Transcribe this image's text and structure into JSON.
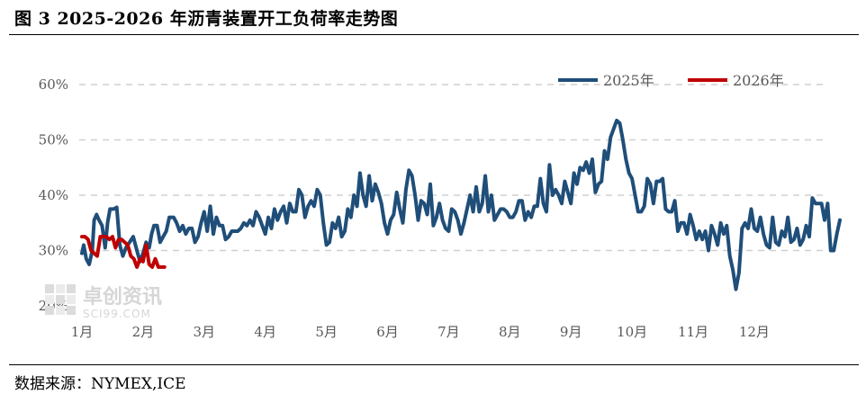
{
  "header": {
    "title": "图 3 2025-2026 年沥青装置开工负荷率走势图"
  },
  "footer": {
    "source": "数据来源：NYMEX,ICE"
  },
  "watermark": {
    "name": "卓创资讯",
    "sub": "SCI99.COM"
  },
  "colors": {
    "series_2025": "#1f4e79",
    "series_2026": "#c00000",
    "grid": "#d0d0d0",
    "tick": "#595959"
  },
  "chart_data": {
    "type": "line",
    "title": "图 3 2025-2026 年沥青装置开工负荷率走势图",
    "xlabel": "",
    "ylabel": "",
    "ylim": [
      20,
      60
    ],
    "y_ticks": [
      "20%",
      "30%",
      "40%",
      "50%",
      "60%"
    ],
    "y_tick_values": [
      20,
      30,
      40,
      50,
      60
    ],
    "x_ticks": [
      "1月",
      "2月",
      "3月",
      "4月",
      "5月",
      "6月",
      "7月",
      "8月",
      "9月",
      "10月",
      "11月",
      "12月"
    ],
    "grid": true,
    "legend_position": "top-right",
    "series": [
      {
        "name": "2025年",
        "color": "#1f4e79",
        "values": [
          [
            1.0,
            29.5
          ],
          [
            1.03,
            31.0
          ],
          [
            1.07,
            28.5
          ],
          [
            1.12,
            27.5
          ],
          [
            1.17,
            30.0
          ],
          [
            1.2,
            35.5
          ],
          [
            1.24,
            36.5
          ],
          [
            1.28,
            35.5
          ],
          [
            1.33,
            34.5
          ],
          [
            1.38,
            30.5
          ],
          [
            1.42,
            35.0
          ],
          [
            1.46,
            37.5
          ],
          [
            1.52,
            37.5
          ],
          [
            1.57,
            37.8
          ],
          [
            1.62,
            31.0
          ],
          [
            1.67,
            29.0
          ],
          [
            1.72,
            30.5
          ],
          [
            1.78,
            31.5
          ],
          [
            1.84,
            32.5
          ],
          [
            1.9,
            30.0
          ],
          [
            1.95,
            28.0
          ],
          [
            2.0,
            29.5
          ],
          [
            2.05,
            31.5
          ],
          [
            2.1,
            30.5
          ],
          [
            2.14,
            33.0
          ],
          [
            2.18,
            34.5
          ],
          [
            2.23,
            34.5
          ],
          [
            2.28,
            31.5
          ],
          [
            2.33,
            32.5
          ],
          [
            2.38,
            33.5
          ],
          [
            2.43,
            36.0
          ],
          [
            2.5,
            36.0
          ],
          [
            2.55,
            35.0
          ],
          [
            2.6,
            33.5
          ],
          [
            2.65,
            34.5
          ],
          [
            2.7,
            33.0
          ],
          [
            2.75,
            34.0
          ],
          [
            2.8,
            34.0
          ],
          [
            2.85,
            31.5
          ],
          [
            2.9,
            32.5
          ],
          [
            2.95,
            35.0
          ],
          [
            3.0,
            37.0
          ],
          [
            3.05,
            33.5
          ],
          [
            3.1,
            38.0
          ],
          [
            3.15,
            33.0
          ],
          [
            3.2,
            36.0
          ],
          [
            3.25,
            34.5
          ],
          [
            3.3,
            34.5
          ],
          [
            3.35,
            32.0
          ],
          [
            3.4,
            32.5
          ],
          [
            3.45,
            33.5
          ],
          [
            3.5,
            33.5
          ],
          [
            3.55,
            33.5
          ],
          [
            3.6,
            34.0
          ],
          [
            3.65,
            35.0
          ],
          [
            3.7,
            34.5
          ],
          [
            3.75,
            35.5
          ],
          [
            3.8,
            34.5
          ],
          [
            3.85,
            37.0
          ],
          [
            3.9,
            36.0
          ],
          [
            3.95,
            34.5
          ],
          [
            4.0,
            33.0
          ],
          [
            4.05,
            36.0
          ],
          [
            4.1,
            34.0
          ],
          [
            4.15,
            37.5
          ],
          [
            4.2,
            35.5
          ],
          [
            4.25,
            37.0
          ],
          [
            4.3,
            38.0
          ],
          [
            4.35,
            35.0
          ],
          [
            4.4,
            38.5
          ],
          [
            4.45,
            37.0
          ],
          [
            4.5,
            37.0
          ],
          [
            4.55,
            41.0
          ],
          [
            4.6,
            40.0
          ],
          [
            4.65,
            36.0
          ],
          [
            4.7,
            38.0
          ],
          [
            4.75,
            39.0
          ],
          [
            4.8,
            38.0
          ],
          [
            4.85,
            41.0
          ],
          [
            4.9,
            40.0
          ],
          [
            4.95,
            35.0
          ],
          [
            5.0,
            31.0
          ],
          [
            5.05,
            31.5
          ],
          [
            5.1,
            35.0
          ],
          [
            5.15,
            34.0
          ],
          [
            5.2,
            36.0
          ],
          [
            5.25,
            32.5
          ],
          [
            5.3,
            33.5
          ],
          [
            5.35,
            37.5
          ],
          [
            5.4,
            36.0
          ],
          [
            5.45,
            40.0
          ],
          [
            5.5,
            38.0
          ],
          [
            5.55,
            44.0
          ],
          [
            5.6,
            40.0
          ],
          [
            5.65,
            38.0
          ],
          [
            5.7,
            43.5
          ],
          [
            5.75,
            39.0
          ],
          [
            5.8,
            42.0
          ],
          [
            5.85,
            40.5
          ],
          [
            5.9,
            38.5
          ],
          [
            5.95,
            35.0
          ],
          [
            6.0,
            33.0
          ],
          [
            6.05,
            35.5
          ],
          [
            6.1,
            36.5
          ],
          [
            6.15,
            40.5
          ],
          [
            6.2,
            37.5
          ],
          [
            6.25,
            35.0
          ],
          [
            6.3,
            41.0
          ],
          [
            6.35,
            44.5
          ],
          [
            6.4,
            43.5
          ],
          [
            6.45,
            40.0
          ],
          [
            6.5,
            35.5
          ],
          [
            6.55,
            39.0
          ],
          [
            6.6,
            38.5
          ],
          [
            6.65,
            36.5
          ],
          [
            6.7,
            42.0
          ],
          [
            6.75,
            34.5
          ],
          [
            6.8,
            36.0
          ],
          [
            6.85,
            38.5
          ],
          [
            6.9,
            35.5
          ],
          [
            6.95,
            34.0
          ],
          [
            7.0,
            33.5
          ],
          [
            7.05,
            37.5
          ],
          [
            7.1,
            37.0
          ],
          [
            7.15,
            35.5
          ],
          [
            7.2,
            33.0
          ],
          [
            7.25,
            35.0
          ],
          [
            7.3,
            37.5
          ],
          [
            7.35,
            40.0
          ],
          [
            7.4,
            37.0
          ],
          [
            7.45,
            41.5
          ],
          [
            7.5,
            37.0
          ],
          [
            7.55,
            38.5
          ],
          [
            7.6,
            43.5
          ],
          [
            7.65,
            37.0
          ],
          [
            7.7,
            40.0
          ],
          [
            7.75,
            35.5
          ],
          [
            7.8,
            36.5
          ],
          [
            7.85,
            37.5
          ],
          [
            7.9,
            37.5
          ],
          [
            7.95,
            37.0
          ],
          [
            8.0,
            36.0
          ],
          [
            8.05,
            36.0
          ],
          [
            8.1,
            37.0
          ],
          [
            8.15,
            39.0
          ],
          [
            8.2,
            39.0
          ],
          [
            8.25,
            35.5
          ],
          [
            8.3,
            37.0
          ],
          [
            8.35,
            36.0
          ],
          [
            8.4,
            38.0
          ],
          [
            8.45,
            38.0
          ],
          [
            8.5,
            43.0
          ],
          [
            8.55,
            38.5
          ],
          [
            8.6,
            37.0
          ],
          [
            8.65,
            45.5
          ],
          [
            8.7,
            40.0
          ],
          [
            8.75,
            41.0
          ],
          [
            8.8,
            40.0
          ],
          [
            8.85,
            38.5
          ],
          [
            8.9,
            42.5
          ],
          [
            8.95,
            40.5
          ],
          [
            9.0,
            38.5
          ],
          [
            9.05,
            44.0
          ],
          [
            9.1,
            42.0
          ],
          [
            9.15,
            45.0
          ],
          [
            9.2,
            44.5
          ],
          [
            9.25,
            46.0
          ],
          [
            9.3,
            44.0
          ],
          [
            9.35,
            46.5
          ],
          [
            9.4,
            40.5
          ],
          [
            9.45,
            42.0
          ],
          [
            9.5,
            42.5
          ],
          [
            9.55,
            48.0
          ],
          [
            9.6,
            46.5
          ],
          [
            9.65,
            50.5
          ],
          [
            9.7,
            52.0
          ],
          [
            9.75,
            53.5
          ],
          [
            9.8,
            53.0
          ],
          [
            9.85,
            50.0
          ],
          [
            9.9,
            46.5
          ],
          [
            9.95,
            44.0
          ],
          [
            10.0,
            43.0
          ],
          [
            10.05,
            40.0
          ],
          [
            10.1,
            37.0
          ],
          [
            10.15,
            37.0
          ],
          [
            10.2,
            38.0
          ],
          [
            10.25,
            43.0
          ],
          [
            10.3,
            42.0
          ],
          [
            10.35,
            38.5
          ],
          [
            10.4,
            42.5
          ],
          [
            10.45,
            42.5
          ],
          [
            10.5,
            43.0
          ],
          [
            10.55,
            37.5
          ],
          [
            10.6,
            37.0
          ],
          [
            10.65,
            37.0
          ],
          [
            10.7,
            39.0
          ],
          [
            10.75,
            33.5
          ],
          [
            10.8,
            35.0
          ],
          [
            10.85,
            35.0
          ],
          [
            10.9,
            33.0
          ],
          [
            10.95,
            36.5
          ],
          [
            11.0,
            34.5
          ],
          [
            11.05,
            32.0
          ],
          [
            11.1,
            33.5
          ],
          [
            11.15,
            32.0
          ],
          [
            11.2,
            33.5
          ],
          [
            11.25,
            30.0
          ],
          [
            11.3,
            34.5
          ],
          [
            11.35,
            33.0
          ],
          [
            11.4,
            31.0
          ],
          [
            11.45,
            35.0
          ],
          [
            11.5,
            33.0
          ],
          [
            11.55,
            34.5
          ],
          [
            11.6,
            29.0
          ],
          [
            11.65,
            26.5
          ],
          [
            11.7,
            23.0
          ],
          [
            11.75,
            26.0
          ],
          [
            11.8,
            34.0
          ],
          [
            11.85,
            35.0
          ],
          [
            11.9,
            34.0
          ],
          [
            11.95,
            37.5
          ],
          [
            12.0,
            34.0
          ],
          [
            12.05,
            33.5
          ],
          [
            12.1,
            36.0
          ],
          [
            12.15,
            33.0
          ],
          [
            12.2,
            31.0
          ],
          [
            12.25,
            30.5
          ],
          [
            12.3,
            36.0
          ],
          [
            12.35,
            31.5
          ],
          [
            12.4,
            31.0
          ],
          [
            12.45,
            33.5
          ],
          [
            12.5,
            32.5
          ],
          [
            12.55,
            36.0
          ],
          [
            12.6,
            31.5
          ],
          [
            12.65,
            32.0
          ],
          [
            12.7,
            34.0
          ],
          [
            12.75,
            31.0
          ],
          [
            12.8,
            32.0
          ],
          [
            12.85,
            34.5
          ],
          [
            12.9,
            32.5
          ],
          [
            12.95,
            39.5
          ],
          [
            13.0,
            38.5
          ],
          [
            13.05,
            38.5
          ],
          [
            13.1,
            38.5
          ],
          [
            13.15,
            35.5
          ],
          [
            13.2,
            38.5
          ],
          [
            13.25,
            30.0
          ],
          [
            13.3,
            30.0
          ],
          [
            13.35,
            33.0
          ],
          [
            13.4,
            35.5
          ]
        ]
      },
      {
        "name": "2026年",
        "color": "#c00000",
        "values": [
          [
            1.0,
            32.5
          ],
          [
            1.05,
            32.5
          ],
          [
            1.1,
            32.0
          ],
          [
            1.15,
            30.0
          ],
          [
            1.2,
            29.5
          ],
          [
            1.25,
            29.0
          ],
          [
            1.3,
            32.5
          ],
          [
            1.35,
            32.5
          ],
          [
            1.4,
            32.5
          ],
          [
            1.45,
            32.0
          ],
          [
            1.5,
            32.5
          ],
          [
            1.55,
            30.5
          ],
          [
            1.6,
            32.0
          ],
          [
            1.65,
            32.0
          ],
          [
            1.7,
            31.5
          ],
          [
            1.75,
            31.0
          ],
          [
            1.8,
            29.0
          ],
          [
            1.85,
            28.5
          ],
          [
            1.9,
            27.0
          ],
          [
            1.95,
            28.5
          ],
          [
            2.0,
            28.0
          ],
          [
            2.05,
            31.0
          ],
          [
            2.1,
            27.5
          ],
          [
            2.15,
            27.0
          ],
          [
            2.2,
            28.5
          ],
          [
            2.25,
            27.0
          ],
          [
            2.3,
            27.0
          ],
          [
            2.35,
            27.0
          ]
        ]
      }
    ]
  }
}
